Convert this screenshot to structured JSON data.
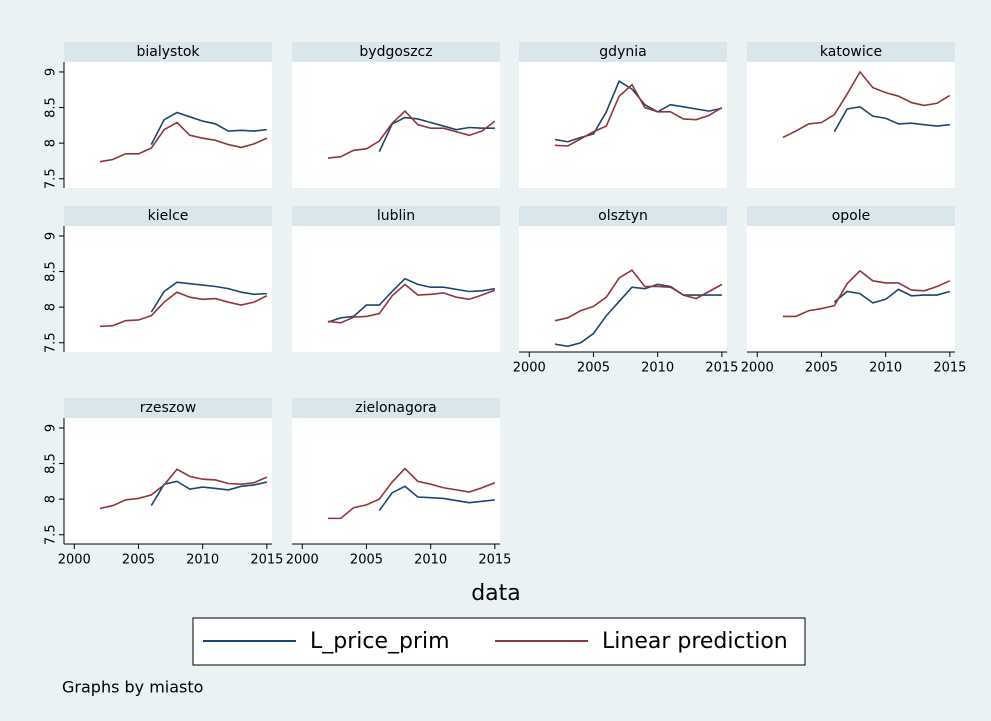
{
  "chart_data": [
    {
      "type": "line",
      "title": "bialystok",
      "x": [
        2002,
        2003,
        2004,
        2005,
        2006,
        2007,
        2008,
        2009,
        2010,
        2011,
        2012,
        2013,
        2014,
        2015
      ],
      "xlim": [
        1999.2,
        2015.4
      ],
      "ylim": [
        7.37,
        9.14
      ],
      "yticks": [
        7.5,
        8,
        8.5,
        9
      ],
      "series": [
        {
          "name": "L_price_prim",
          "color": "#1a476f",
          "values": [
            null,
            null,
            null,
            null,
            7.98,
            8.33,
            8.43,
            8.37,
            8.31,
            8.27,
            8.17,
            8.18,
            8.17,
            8.19
          ]
        },
        {
          "name": "Linear prediction",
          "color": "#90353b",
          "values": [
            7.74,
            7.77,
            7.85,
            7.85,
            7.93,
            8.19,
            8.29,
            8.11,
            8.07,
            8.04,
            7.98,
            7.94,
            7.99,
            8.07
          ]
        }
      ]
    },
    {
      "type": "line",
      "title": "bydgoszcz",
      "x": [
        2002,
        2003,
        2004,
        2005,
        2006,
        2007,
        2008,
        2009,
        2010,
        2011,
        2012,
        2013,
        2014,
        2015
      ],
      "xlim": [
        1999.2,
        2015.4
      ],
      "ylim": [
        7.37,
        9.14
      ],
      "series": [
        {
          "name": "L_price_prim",
          "color": "#1a476f",
          "values": [
            null,
            null,
            null,
            null,
            7.88,
            8.27,
            8.36,
            8.34,
            8.29,
            8.24,
            8.19,
            8.22,
            8.21,
            8.21
          ]
        },
        {
          "name": "Linear prediction",
          "color": "#90353b",
          "values": [
            7.79,
            7.81,
            7.9,
            7.92,
            8.03,
            8.28,
            8.45,
            8.26,
            8.21,
            8.21,
            8.16,
            8.11,
            8.17,
            8.31
          ]
        }
      ]
    },
    {
      "type": "line",
      "title": "gdynia",
      "x": [
        2002,
        2003,
        2004,
        2005,
        2006,
        2007,
        2008,
        2009,
        2010,
        2011,
        2012,
        2013,
        2014,
        2015
      ],
      "xlim": [
        1999.2,
        2015.4
      ],
      "ylim": [
        7.37,
        9.14
      ],
      "series": [
        {
          "name": "L_price_prim",
          "color": "#1a476f",
          "values": [
            8.05,
            8.02,
            8.08,
            8.13,
            8.44,
            8.87,
            8.76,
            8.54,
            8.44,
            8.54,
            8.51,
            8.48,
            8.45,
            8.49
          ]
        },
        {
          "name": "Linear prediction",
          "color": "#90353b",
          "values": [
            7.97,
            7.96,
            8.06,
            8.16,
            8.24,
            8.66,
            8.82,
            8.5,
            8.44,
            8.44,
            8.34,
            8.33,
            8.39,
            8.5
          ]
        }
      ]
    },
    {
      "type": "line",
      "title": "katowice",
      "x": [
        2002,
        2003,
        2004,
        2005,
        2006,
        2007,
        2008,
        2009,
        2010,
        2011,
        2012,
        2013,
        2014,
        2015
      ],
      "xlim": [
        1999.2,
        2015.4
      ],
      "ylim": [
        7.37,
        9.14
      ],
      "series": [
        {
          "name": "L_price_prim",
          "color": "#1a476f",
          "values": [
            null,
            null,
            null,
            null,
            8.16,
            8.48,
            8.51,
            8.38,
            8.35,
            8.27,
            8.28,
            8.26,
            8.24,
            8.26
          ]
        },
        {
          "name": "Linear prediction",
          "color": "#90353b",
          "values": [
            8.08,
            8.17,
            8.27,
            8.29,
            8.4,
            8.69,
            9.0,
            8.78,
            8.71,
            8.66,
            8.57,
            8.53,
            8.56,
            8.67
          ]
        }
      ]
    },
    {
      "type": "line",
      "title": "kielce",
      "x": [
        2002,
        2003,
        2004,
        2005,
        2006,
        2007,
        2008,
        2009,
        2010,
        2011,
        2012,
        2013,
        2014,
        2015
      ],
      "xlim": [
        1999.2,
        2015.4
      ],
      "ylim": [
        7.37,
        9.14
      ],
      "yticks": [
        7.5,
        8,
        8.5,
        9
      ],
      "series": [
        {
          "name": "L_price_prim",
          "color": "#1a476f",
          "values": [
            null,
            null,
            null,
            null,
            7.93,
            8.22,
            8.35,
            8.33,
            8.31,
            8.29,
            8.26,
            8.21,
            8.18,
            8.19
          ]
        },
        {
          "name": "Linear prediction",
          "color": "#90353b",
          "values": [
            7.73,
            7.74,
            7.81,
            7.82,
            7.88,
            8.07,
            8.21,
            8.14,
            8.11,
            8.12,
            8.07,
            8.03,
            8.07,
            8.16
          ]
        }
      ]
    },
    {
      "type": "line",
      "title": "lublin",
      "x": [
        2002,
        2003,
        2004,
        2005,
        2006,
        2007,
        2008,
        2009,
        2010,
        2011,
        2012,
        2013,
        2014,
        2015
      ],
      "xlim": [
        1999.2,
        2015.4
      ],
      "ylim": [
        7.37,
        9.14
      ],
      "series": [
        {
          "name": "L_price_prim",
          "color": "#1a476f",
          "values": [
            7.79,
            7.85,
            7.87,
            8.03,
            8.03,
            8.22,
            8.4,
            8.32,
            8.28,
            8.28,
            8.25,
            8.22,
            8.23,
            8.26
          ]
        },
        {
          "name": "Linear prediction",
          "color": "#90353b",
          "values": [
            7.8,
            7.78,
            7.86,
            7.87,
            7.91,
            8.16,
            8.32,
            8.17,
            8.18,
            8.2,
            8.14,
            8.11,
            8.17,
            8.24
          ]
        }
      ]
    },
    {
      "type": "line",
      "title": "olsztyn",
      "x": [
        2002,
        2003,
        2004,
        2005,
        2006,
        2007,
        2008,
        2009,
        2010,
        2011,
        2012,
        2013,
        2014,
        2015
      ],
      "xlim": [
        1999.2,
        2015.4
      ],
      "ylim": [
        7.37,
        9.14
      ],
      "xticks": [
        2000,
        2005,
        2010,
        2015
      ],
      "series": [
        {
          "name": "L_price_prim",
          "color": "#1a476f",
          "values": [
            7.48,
            7.45,
            7.5,
            7.63,
            7.88,
            8.08,
            8.28,
            8.26,
            8.32,
            8.29,
            8.17,
            8.17,
            8.17,
            8.17
          ]
        },
        {
          "name": "Linear prediction",
          "color": "#90353b",
          "values": [
            7.81,
            7.85,
            7.95,
            8.01,
            8.14,
            8.41,
            8.52,
            8.29,
            8.29,
            8.28,
            8.17,
            8.12,
            8.22,
            8.32
          ]
        }
      ]
    },
    {
      "type": "line",
      "title": "opole",
      "x": [
        2002,
        2003,
        2004,
        2005,
        2006,
        2007,
        2008,
        2009,
        2010,
        2011,
        2012,
        2013,
        2014,
        2015
      ],
      "xlim": [
        1999.2,
        2015.4
      ],
      "ylim": [
        7.37,
        9.14
      ],
      "xticks": [
        2000,
        2005,
        2010,
        2015
      ],
      "series": [
        {
          "name": "L_price_prim",
          "color": "#1a476f",
          "values": [
            null,
            null,
            null,
            null,
            8.07,
            8.22,
            8.19,
            8.06,
            8.11,
            8.25,
            8.16,
            8.17,
            8.17,
            8.22
          ]
        },
        {
          "name": "Linear prediction",
          "color": "#90353b",
          "values": [
            7.87,
            7.87,
            7.95,
            7.98,
            8.02,
            8.33,
            8.51,
            8.37,
            8.34,
            8.34,
            8.24,
            8.23,
            8.29,
            8.37
          ]
        }
      ]
    },
    {
      "type": "line",
      "title": "rzeszow",
      "x": [
        2002,
        2003,
        2004,
        2005,
        2006,
        2007,
        2008,
        2009,
        2010,
        2011,
        2012,
        2013,
        2014,
        2015
      ],
      "xlim": [
        1999.2,
        2015.4
      ],
      "ylim": [
        7.37,
        9.14
      ],
      "yticks": [
        7.5,
        8,
        8.5,
        9
      ],
      "xticks": [
        2000,
        2005,
        2010,
        2015
      ],
      "series": [
        {
          "name": "L_price_prim",
          "color": "#1a476f",
          "values": [
            null,
            null,
            null,
            null,
            7.91,
            8.21,
            8.25,
            8.14,
            8.17,
            8.15,
            8.13,
            8.18,
            8.2,
            8.24
          ]
        },
        {
          "name": "Linear prediction",
          "color": "#90353b",
          "values": [
            7.87,
            7.91,
            7.99,
            8.01,
            8.06,
            8.2,
            8.42,
            8.32,
            8.28,
            8.27,
            8.22,
            8.21,
            8.23,
            8.31
          ]
        }
      ]
    },
    {
      "type": "line",
      "title": "zielonagora",
      "x": [
        2002,
        2003,
        2004,
        2005,
        2006,
        2007,
        2008,
        2009,
        2010,
        2011,
        2012,
        2013,
        2014,
        2015
      ],
      "xlim": [
        1999.2,
        2015.4
      ],
      "ylim": [
        7.37,
        9.14
      ],
      "xticks": [
        2000,
        2005,
        2010,
        2015
      ],
      "series": [
        {
          "name": "L_price_prim",
          "color": "#1a476f",
          "values": [
            null,
            null,
            null,
            null,
            7.84,
            8.09,
            8.18,
            8.03,
            8.02,
            8.01,
            7.98,
            7.95,
            7.97,
            7.99
          ]
        },
        {
          "name": "Linear prediction",
          "color": "#90353b",
          "values": [
            7.73,
            7.73,
            7.88,
            7.92,
            8.0,
            8.24,
            8.43,
            8.25,
            8.21,
            8.16,
            8.13,
            8.1,
            8.16,
            8.23
          ]
        }
      ]
    }
  ],
  "xlabel": "data",
  "note": "Graphs by miasto"
}
